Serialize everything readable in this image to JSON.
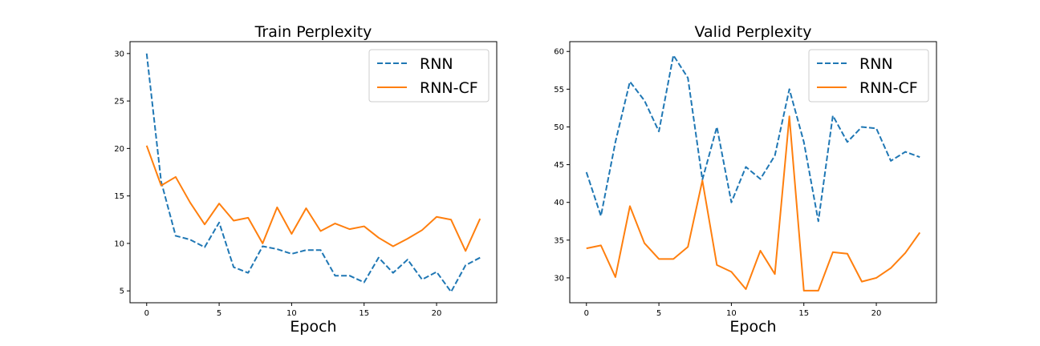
{
  "chart_data": [
    {
      "type": "line",
      "title": "Train Perplexity",
      "xlabel": "Epoch",
      "ylabel": "",
      "xlim": [
        -1.15,
        24.15
      ],
      "ylim": [
        3.75,
        31.25
      ],
      "xticks": [
        0,
        5,
        10,
        15,
        20
      ],
      "yticks": [
        5,
        10,
        15,
        20,
        25,
        30
      ],
      "grid": false,
      "legend_position": "top-right",
      "x": [
        0,
        1,
        2,
        3,
        4,
        5,
        6,
        7,
        8,
        9,
        10,
        11,
        12,
        13,
        14,
        15,
        16,
        17,
        18,
        19,
        20,
        21,
        22,
        23
      ],
      "series": [
        {
          "name": "RNN",
          "color": "#1f77b4",
          "style": "dashed",
          "values": [
            30.0,
            16.5,
            10.8,
            10.4,
            9.6,
            12.2,
            7.5,
            6.9,
            9.7,
            9.4,
            8.9,
            9.3,
            9.3,
            6.6,
            6.6,
            5.9,
            8.5,
            6.9,
            8.3,
            6.2,
            7.0,
            4.9,
            7.7,
            8.5
          ]
        },
        {
          "name": "RNN-CF",
          "color": "#ff7f0e",
          "style": "solid",
          "values": [
            20.3,
            16.1,
            17.0,
            14.3,
            12.0,
            14.2,
            12.4,
            12.7,
            10.0,
            13.8,
            11.0,
            13.7,
            11.3,
            12.1,
            11.5,
            11.8,
            10.6,
            9.7,
            10.5,
            11.4,
            12.8,
            12.5,
            9.2,
            12.6
          ]
        }
      ]
    },
    {
      "type": "line",
      "title": "Valid Perplexity",
      "xlabel": "Epoch",
      "ylabel": "",
      "xlim": [
        -1.15,
        24.15
      ],
      "ylim": [
        26.7,
        61.3
      ],
      "xticks": [
        0,
        5,
        10,
        15,
        20
      ],
      "yticks": [
        30,
        35,
        40,
        45,
        50,
        55,
        60
      ],
      "grid": false,
      "legend_position": "top-right",
      "x": [
        0,
        1,
        2,
        3,
        4,
        5,
        6,
        7,
        8,
        9,
        10,
        11,
        12,
        13,
        14,
        15,
        16,
        17,
        18,
        19,
        20,
        21,
        22,
        23
      ],
      "series": [
        {
          "name": "RNN",
          "color": "#1f77b4",
          "style": "dashed",
          "values": [
            44.0,
            38.2,
            48.0,
            56.0,
            53.5,
            49.4,
            59.5,
            56.5,
            43.0,
            50.0,
            40.0,
            44.7,
            43.1,
            46.2,
            55.0,
            48.0,
            37.5,
            51.5,
            48.0,
            50.0,
            49.8,
            45.5,
            46.7,
            46.0
          ]
        },
        {
          "name": "RNN-CF",
          "color": "#ff7f0e",
          "style": "solid",
          "values": [
            33.9,
            34.3,
            30.1,
            39.5,
            34.6,
            32.5,
            32.5,
            34.1,
            42.9,
            31.7,
            30.8,
            28.5,
            33.6,
            30.5,
            51.4,
            28.3,
            28.3,
            33.4,
            33.2,
            29.5,
            30.0,
            31.3,
            33.3,
            36.0
          ]
        }
      ]
    }
  ]
}
